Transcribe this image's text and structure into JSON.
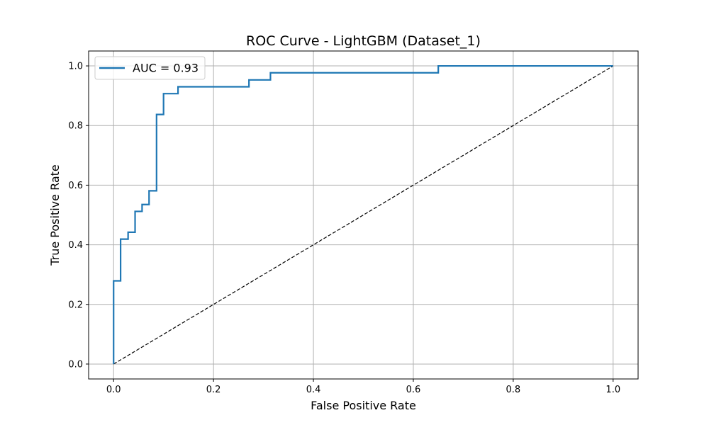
{
  "chart_data": {
    "type": "line",
    "title": "ROC Curve - LightGBM (Dataset_1)",
    "xlabel": "False Positive Rate",
    "ylabel": "True Positive Rate",
    "xlim": [
      -0.05,
      1.05
    ],
    "ylim": [
      -0.05,
      1.05
    ],
    "xticks": [
      "0.0",
      "0.2",
      "0.4",
      "0.6",
      "0.8",
      "1.0"
    ],
    "yticks": [
      "0.0",
      "0.2",
      "0.4",
      "0.6",
      "0.8",
      "1.0"
    ],
    "grid": true,
    "legend_position": "top-left",
    "series": [
      {
        "name": "AUC = 0.93",
        "color": "#1f77b4",
        "style": "solid",
        "x": [
          0.0,
          0.0,
          0.014,
          0.014,
          0.029,
          0.029,
          0.043,
          0.043,
          0.057,
          0.057,
          0.071,
          0.071,
          0.086,
          0.086,
          0.1,
          0.1,
          0.129,
          0.129,
          0.271,
          0.271,
          0.314,
          0.314,
          0.65,
          0.65,
          1.0
        ],
        "y": [
          0.0,
          0.279,
          0.279,
          0.419,
          0.419,
          0.442,
          0.442,
          0.512,
          0.512,
          0.535,
          0.535,
          0.581,
          0.581,
          0.837,
          0.837,
          0.907,
          0.907,
          0.93,
          0.93,
          0.953,
          0.953,
          0.977,
          0.977,
          1.0,
          1.0
        ]
      },
      {
        "name": "",
        "color": "#000000",
        "style": "dashed",
        "x": [
          0.0,
          1.0
        ],
        "y": [
          0.0,
          1.0
        ]
      }
    ]
  }
}
